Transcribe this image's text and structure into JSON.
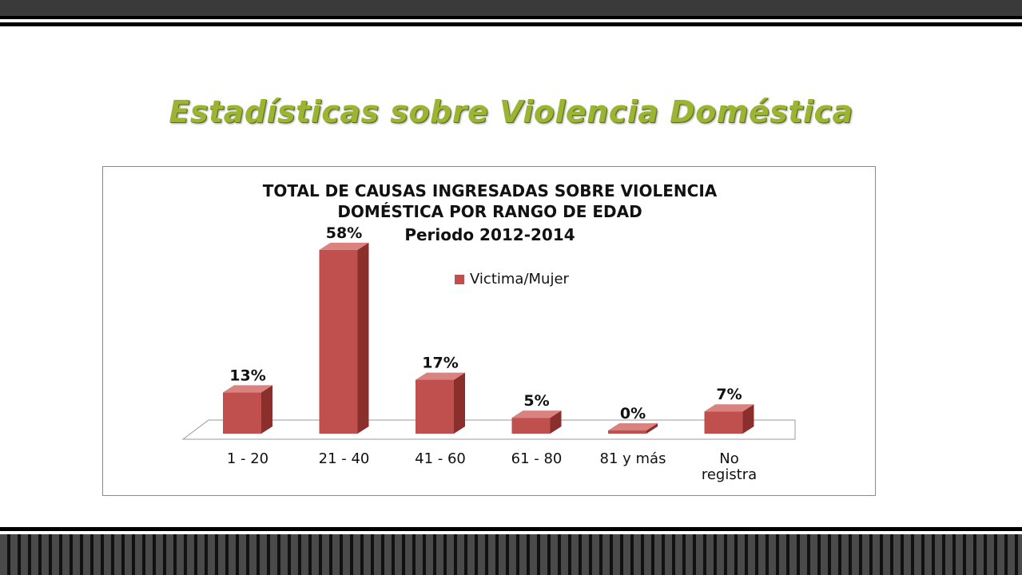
{
  "slide": {
    "title": "Estadísticas sobre Violencia Doméstica"
  },
  "colors": {
    "accent_title": "#9bb532",
    "bar_front": "#c0504d",
    "bar_side": "#8b2f2c",
    "bar_top": "#d9827f"
  },
  "chart_data": {
    "type": "bar",
    "title_lines": [
      "TOTAL DE CAUSAS INGRESADAS  SOBRE VIOLENCIA",
      "DOMÉSTICA POR RANGO DE EDAD",
      "Periodo 2012-2014"
    ],
    "legend": [
      "Victima/Mujer"
    ],
    "legend_position": "top",
    "categories": [
      [
        "1 - 20"
      ],
      [
        "21 - 40"
      ],
      [
        "41 - 60"
      ],
      [
        "61 - 80"
      ],
      [
        "81 y más"
      ],
      [
        "No",
        "registra"
      ]
    ],
    "series": [
      {
        "name": "Victima/Mujer",
        "values": [
          13,
          58,
          17,
          5,
          0,
          7
        ]
      }
    ],
    "data_labels": [
      "13%",
      "58%",
      "17%",
      "5%",
      "0%",
      "7%"
    ],
    "ylim": [
      0,
      60
    ],
    "grid": false,
    "three_d": true
  }
}
